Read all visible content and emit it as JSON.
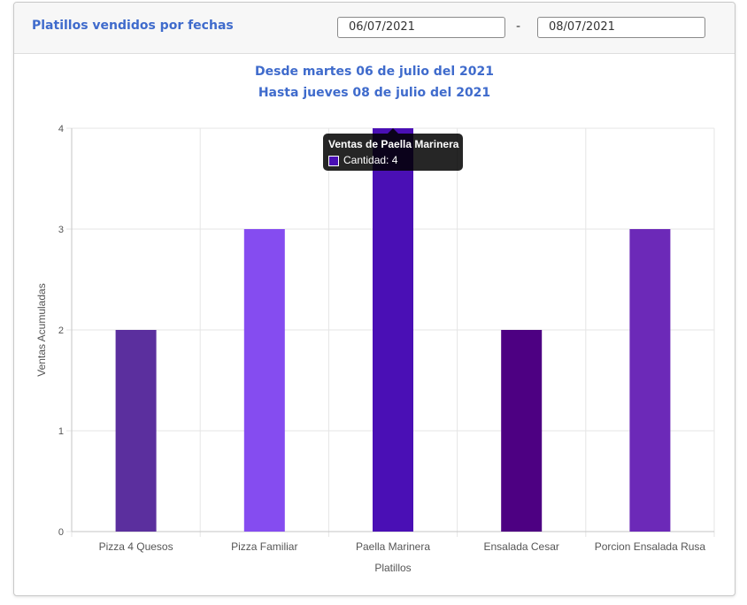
{
  "header": {
    "title": "Platillos vendidos por fechas",
    "date_from": "06/07/2021",
    "date_separator": "-",
    "date_to": "08/07/2021"
  },
  "subtitle": {
    "line1": "Desde martes 06 de julio del 2021",
    "line2": "Hasta jueves 08 de julio del 2021"
  },
  "tooltip": {
    "title": "Ventas de Paella Marinera",
    "line": "Cantidad: 4",
    "swatch_color": "#4a0fb5"
  },
  "chart_data": {
    "type": "bar",
    "categories": [
      "Pizza 4 Quesos",
      "Pizza Familiar",
      "Paella Marinera",
      "Ensalada Cesar",
      "Porcion Ensalada Rusa"
    ],
    "values": [
      2,
      3,
      4,
      2,
      3
    ],
    "colors": [
      "#5b2f9e",
      "#854cf0",
      "#4a0fb5",
      "#4d0082",
      "#6c29b8"
    ],
    "xlabel": "Platillos",
    "ylabel": "Ventas Acumuladas",
    "ylim": [
      0,
      4
    ],
    "yticks": [
      0,
      1,
      2,
      3,
      4
    ],
    "grid": true,
    "legend": "none"
  }
}
